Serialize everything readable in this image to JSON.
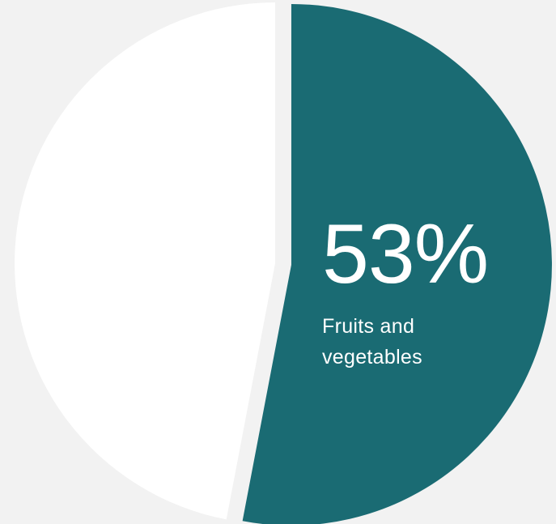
{
  "chart_data": {
    "type": "pie",
    "slices": [
      {
        "label": "Fruits and vegetables",
        "value": 53,
        "value_label": "53%",
        "color": "#1a6b73"
      },
      {
        "label": "",
        "value": 47,
        "value_label": "",
        "color": "#ffffff"
      }
    ],
    "title": "",
    "legend": "none",
    "background": "#f2f2f2"
  }
}
